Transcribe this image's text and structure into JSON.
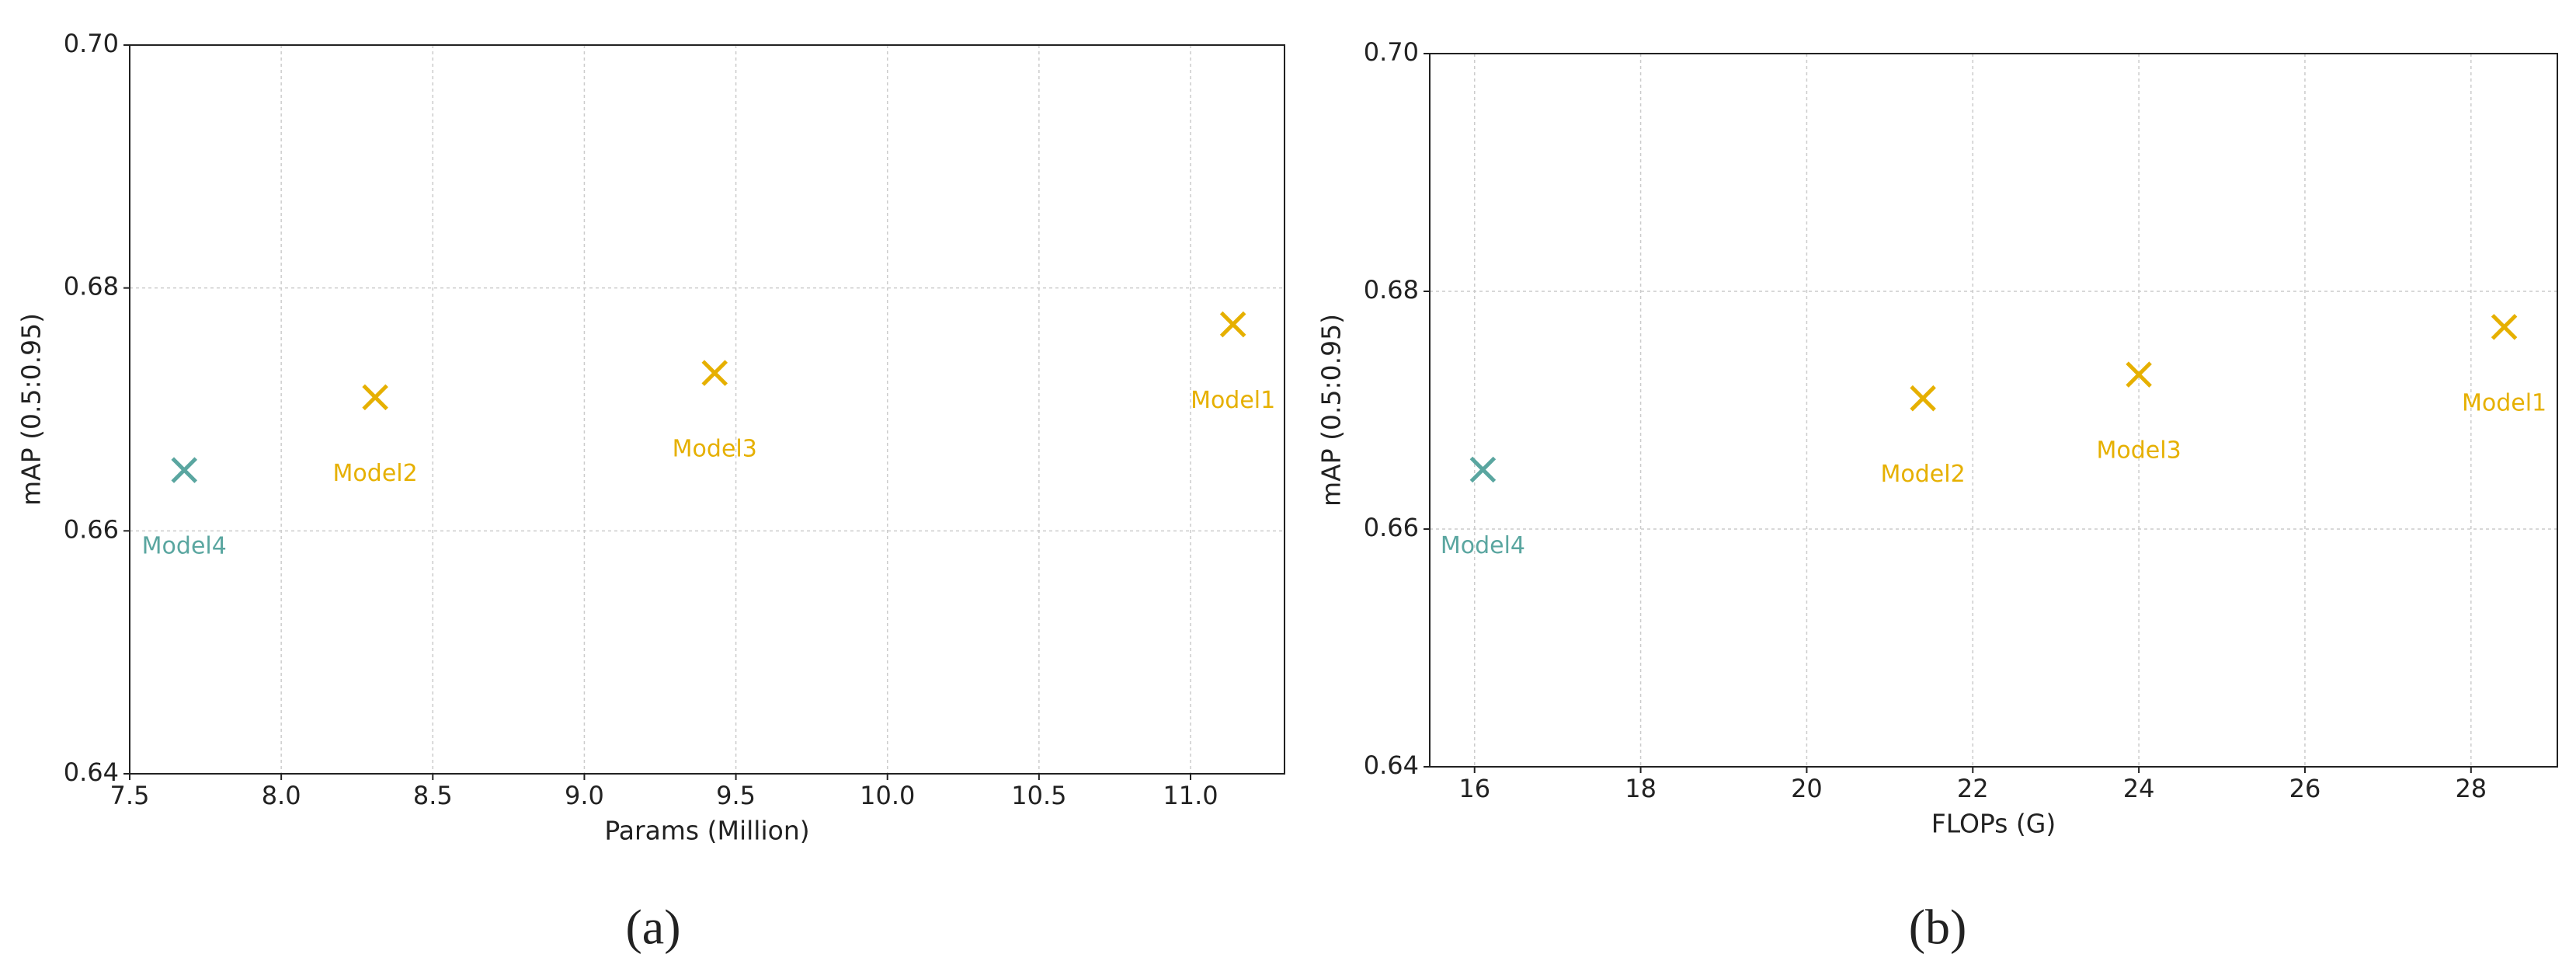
{
  "chart_data": [
    {
      "type": "scatter",
      "xlabel": "Params (Million)",
      "ylabel": "mAP (0.5:0.95)",
      "caption": "(a)",
      "xlim": [
        7.5,
        11.31
      ],
      "ylim": [
        0.64,
        0.7
      ],
      "xticks": [
        7.5,
        {
          "value": 8,
          "label": "8.0"
        },
        8.5,
        {
          "value": 9,
          "label": "9.0"
        },
        9.5,
        {
          "value": 10,
          "label": "10.0"
        },
        10.5,
        {
          "value": 11,
          "label": "11.0"
        }
      ],
      "yticks": [
        0.64,
        0.66,
        0.68,
        {
          "value": 0.7,
          "label": "0.70"
        }
      ],
      "grid": true,
      "series": [
        {
          "name": "Model1",
          "color": "#e6b000",
          "x": [
            11.14
          ],
          "values": [
            0.677
          ]
        },
        {
          "name": "Model2",
          "color": "#e6b000",
          "x": [
            8.31
          ],
          "values": [
            0.671
          ]
        },
        {
          "name": "Model3",
          "color": "#e6b000",
          "x": [
            9.43
          ],
          "values": [
            0.673
          ]
        },
        {
          "name": "Model4",
          "color": "#5aa6a0",
          "x": [
            7.68
          ],
          "values": [
            0.665
          ]
        }
      ]
    },
    {
      "type": "scatter",
      "xlabel": "FLOPs (G)",
      "ylabel": "mAP (0.5:0.95)",
      "caption": "(b)",
      "xlim": [
        15.46,
        29.04
      ],
      "ylim": [
        0.64,
        0.7
      ],
      "xticks": [
        16,
        18,
        20,
        22,
        24,
        26,
        28
      ],
      "yticks": [
        0.64,
        0.66,
        0.68,
        {
          "value": 0.7,
          "label": "0.70"
        }
      ],
      "grid": true,
      "series": [
        {
          "name": "Model1",
          "color": "#e6b000",
          "x": [
            28.4
          ],
          "values": [
            0.677
          ]
        },
        {
          "name": "Model2",
          "color": "#e6b000",
          "x": [
            21.4
          ],
          "values": [
            0.671
          ]
        },
        {
          "name": "Model3",
          "color": "#e6b000",
          "x": [
            24.0
          ],
          "values": [
            0.673
          ]
        },
        {
          "name": "Model4",
          "color": "#5aa6a0",
          "x": [
            16.1
          ],
          "values": [
            0.665
          ]
        }
      ]
    }
  ]
}
